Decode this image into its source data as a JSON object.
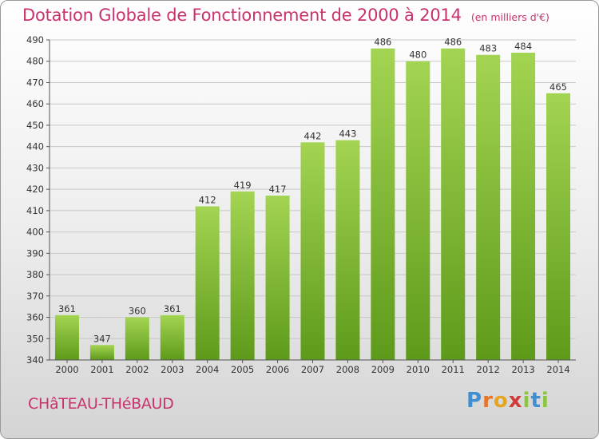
{
  "header": {
    "title": "Dotation Globale de Fonctionnement de 2000 à 2014",
    "subtitle": "(en milliers d'€)"
  },
  "footer": {
    "commune": "CHâTEAU-THéBAUD",
    "logo": {
      "letters": [
        "P",
        "r",
        "o",
        "x",
        "i",
        "t",
        "i"
      ],
      "colors": [
        "#3f8fd2",
        "#e6742a",
        "#e6a520",
        "#d23a3a",
        "#8cc63f",
        "#3f8fd2",
        "#8cc63f"
      ]
    }
  },
  "chart_data": {
    "type": "bar",
    "categories": [
      "2000",
      "2001",
      "2002",
      "2003",
      "2004",
      "2005",
      "2006",
      "2007",
      "2008",
      "2009",
      "2010",
      "2011",
      "2012",
      "2013",
      "2014"
    ],
    "values": [
      361,
      347,
      360,
      361,
      412,
      419,
      417,
      442,
      443,
      486,
      480,
      486,
      483,
      484,
      465
    ],
    "ylim": [
      340,
      490
    ],
    "yticks": [
      340,
      350,
      360,
      370,
      380,
      390,
      400,
      410,
      420,
      430,
      440,
      450,
      460,
      470,
      480,
      490
    ],
    "grid": true,
    "bar_color": "#7fb52f",
    "grid_color": "#c8c8c8",
    "text_color": "#333333"
  }
}
